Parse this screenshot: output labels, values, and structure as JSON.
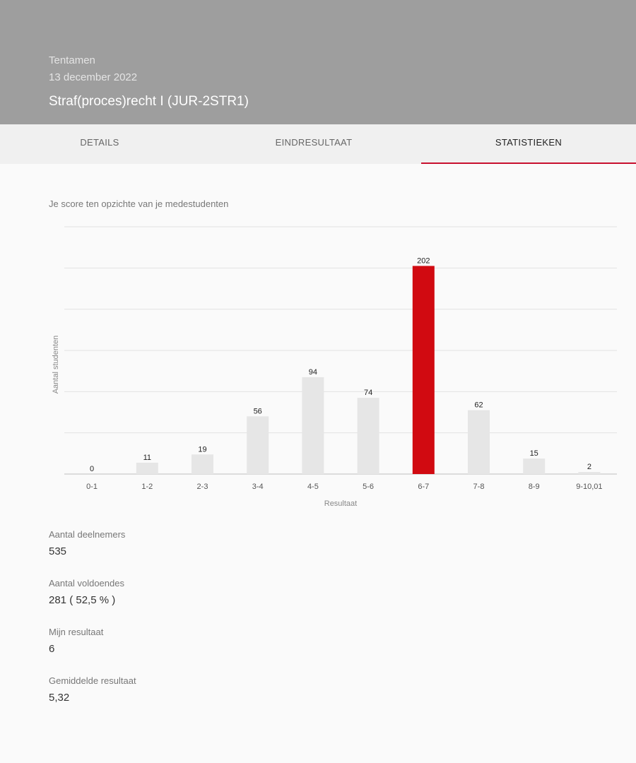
{
  "header": {
    "type": "Tentamen",
    "date": "13 december 2022",
    "title": "Straf(proces)recht I (JUR-2STR1)"
  },
  "tabs": [
    {
      "label": "DETAILS",
      "active": false
    },
    {
      "label": "EINDRESULTAAT",
      "active": false
    },
    {
      "label": "STATISTIEKEN",
      "active": true
    }
  ],
  "section": {
    "subtitle": "Je score ten opzichte van je medestudenten"
  },
  "chart_data": {
    "type": "bar",
    "categories": [
      "0-1",
      "1-2",
      "2-3",
      "3-4",
      "4-5",
      "5-6",
      "6-7",
      "7-8",
      "8-9",
      "9-10,01"
    ],
    "values": [
      0,
      11,
      19,
      56,
      94,
      74,
      202,
      62,
      15,
      2
    ],
    "highlight_index": 6,
    "xlabel": "Resultaat",
    "ylabel": "Aantal studenten",
    "ylim": [
      0,
      240
    ],
    "grid": true,
    "colors": {
      "bar": "#e6e6e6",
      "highlight": "#d10a11",
      "grid": "#e2e2e2",
      "axis": "#bdbdbd"
    }
  },
  "stats": [
    {
      "label": "Aantal deelnemers",
      "value": "535"
    },
    {
      "label": "Aantal voldoendes",
      "value": "281 ( 52,5 % )"
    },
    {
      "label": "Mijn resultaat",
      "value": "6"
    },
    {
      "label": "Gemiddelde resultaat",
      "value": "5,32"
    }
  ]
}
